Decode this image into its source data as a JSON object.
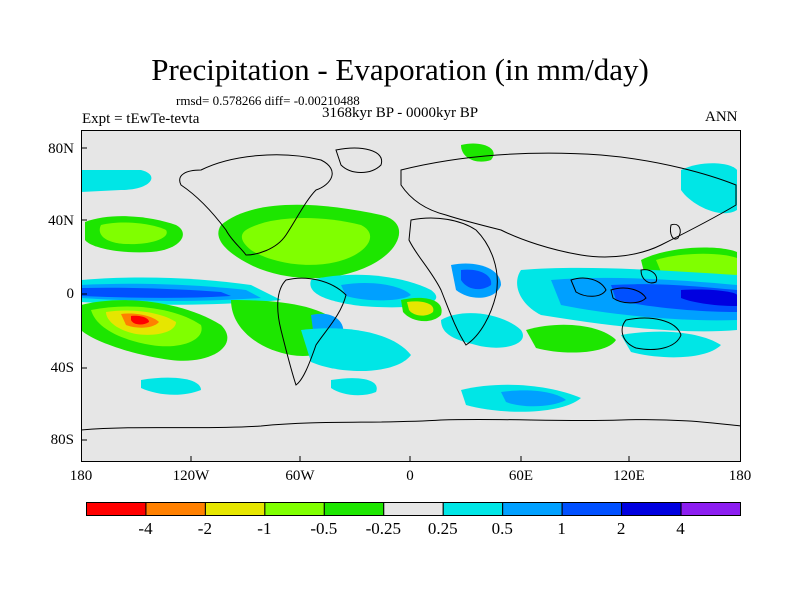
{
  "title": "Precipitation - Evaporation (in mm/day)",
  "stats": "rmsd= 0.578266 diff= -0.00210488",
  "experiment": "Expt = tEwTe-tevta",
  "period": "3168kyr BP - 0000kyr BP",
  "season": "ANN",
  "lat_labels": [
    "80N",
    "40N",
    "0",
    "40S",
    "80S"
  ],
  "lon_labels": [
    "180",
    "120W",
    "60W",
    "0",
    "60E",
    "120E",
    "180"
  ],
  "colorbar": {
    "colors": [
      "#ff0000",
      "#ff8000",
      "#e6e600",
      "#80ff00",
      "#1de600",
      "#e6e6e6",
      "#00e6e6",
      "#00a0ff",
      "#0050ff",
      "#0000e0",
      "#8c1ef0"
    ],
    "labels": [
      "-4",
      "-2",
      "-1",
      "-0.5",
      "-0.25",
      "0.25",
      "0.5",
      "1",
      "2",
      "4"
    ]
  }
}
